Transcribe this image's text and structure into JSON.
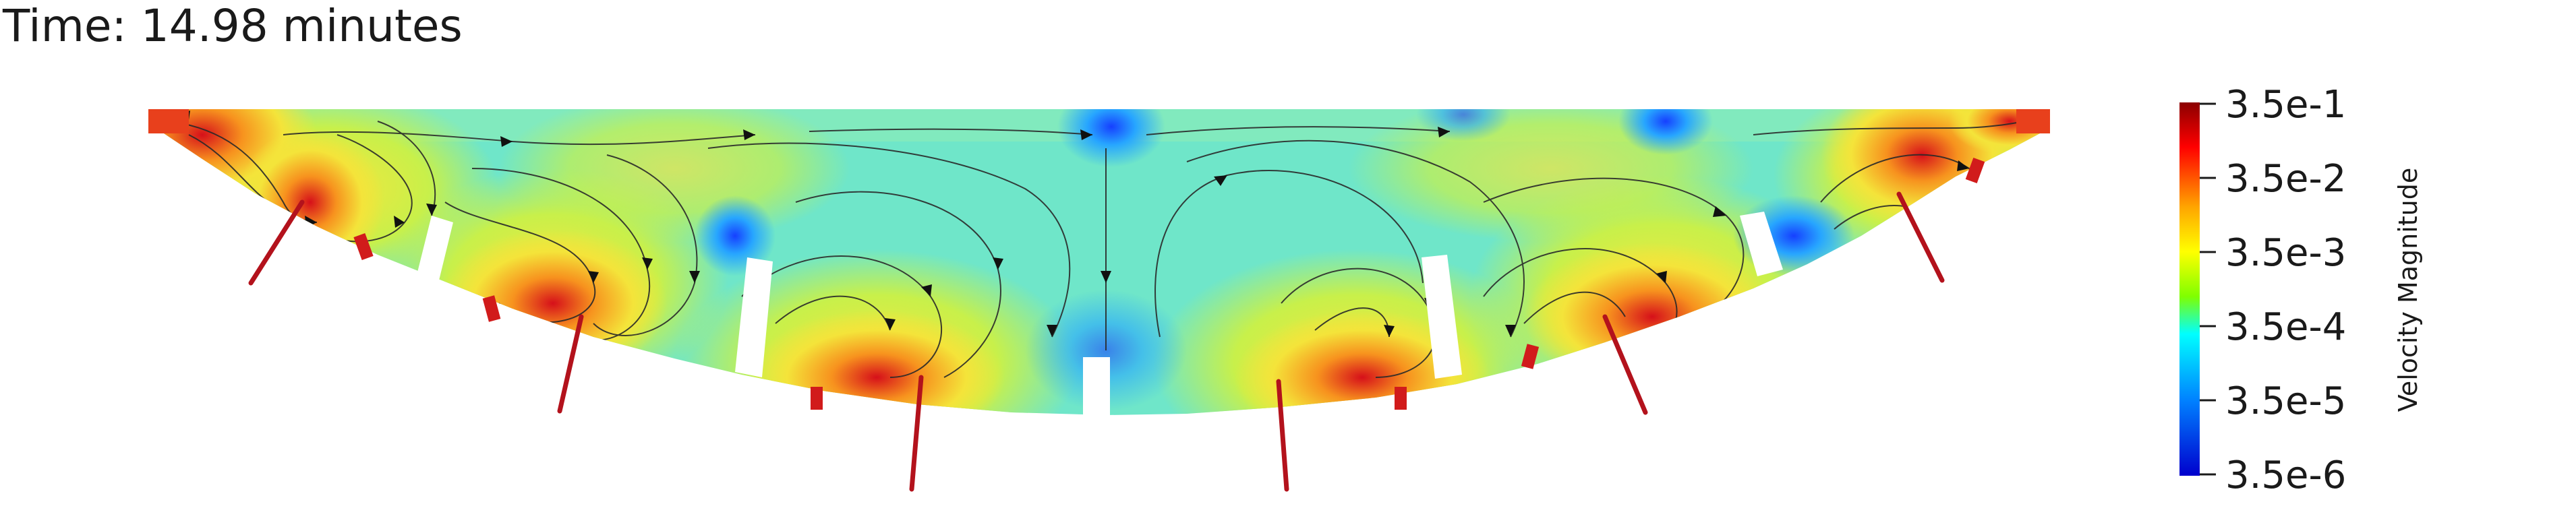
{
  "title": "Time: 14.98 minutes",
  "colorbar": {
    "label": "Velocity Magnitude",
    "ticks": [
      "3.5e-1",
      "3.5e-2",
      "3.5e-3",
      "3.5e-4",
      "3.5e-5",
      "3.5e-6"
    ],
    "colors": [
      "#8b0000",
      "#ff0000",
      "#ffa500",
      "#ffff00",
      "#7fff00",
      "#00ffff",
      "#0080ff",
      "#0000cd"
    ]
  },
  "field_colors": {
    "background": "#6fe6c9",
    "fast": "#e8281c",
    "medium": "#f7a623",
    "slow": "#f5e83c",
    "stagnant": "#1e5bff",
    "jet": "#b3121c"
  }
}
